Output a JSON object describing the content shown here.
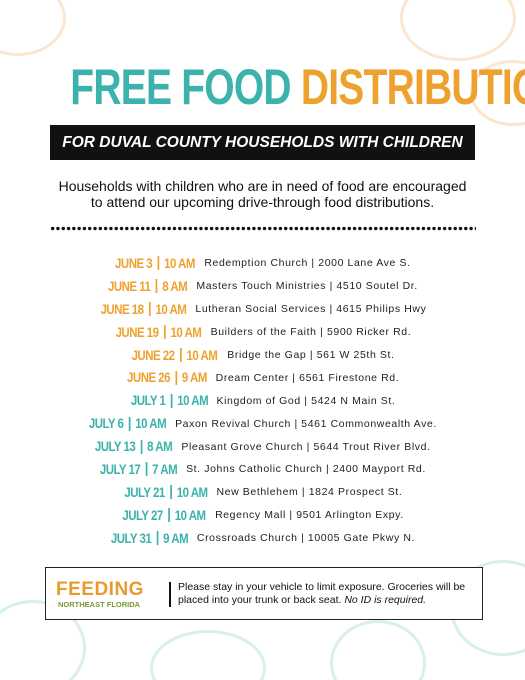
{
  "header": {
    "title_part1": "FREE FOOD",
    "title_part2": "DISTRIBUTION",
    "subtitle": "FOR DUVAL COUNTY HOUSEHOLDS WITH CHILDREN",
    "intro": [
      "Households with children who are in need of food are encouraged",
      "to attend our upcoming drive-through food distributions."
    ]
  },
  "events": [
    {
      "date": "JUNE 3",
      "time": "10 AM",
      "place": "Redemption Church | 2000 Lane Ave S."
    },
    {
      "date": "JUNE 11",
      "time": "8 AM",
      "place": "Masters Touch Ministries | 4510 Soutel Dr."
    },
    {
      "date": "JUNE 18",
      "time": "10 AM",
      "place": "Lutheran Social Services | 4615 Philips Hwy"
    },
    {
      "date": "JUNE 19",
      "time": "10 AM",
      "place": "Builders of the Faith | 5900 Ricker Rd."
    },
    {
      "date": "JUNE 22",
      "time": "10 AM",
      "place": "Bridge the Gap | 561 W 25th St."
    },
    {
      "date": "JUNE 26",
      "time": "9 AM",
      "place": "Dream Center | 6561 Firestone Rd."
    },
    {
      "date": "JULY 1",
      "time": "10 AM",
      "place": "Kingdom of God | 5424 N Main St."
    },
    {
      "date": "JULY 6",
      "time": "10 AM",
      "place": "Paxon Revival Church | 5461 Commonwealth Ave."
    },
    {
      "date": "JULY 13",
      "time": "8 AM",
      "place": "Pleasant Grove Church | 5644 Trout River Blvd."
    },
    {
      "date": "JULY 17",
      "time": "7 AM",
      "place": "St. Johns Catholic Church | 2400 Mayport Rd."
    },
    {
      "date": "JULY 21",
      "time": "10 AM",
      "place": "New Bethlehem | 1824 Prospect St."
    },
    {
      "date": "JULY 27",
      "time": "10 AM",
      "place": "Regency Mall | 9501 Arlington Expy."
    },
    {
      "date": "JULY 31",
      "time": "9 AM",
      "place": "Crossroads Church | 10005 Gate Pkwy N."
    }
  ],
  "footer": {
    "logo": "FEEDING",
    "logo_sub": "NORTHEAST FLORIDA",
    "note": "Please stay in your vehicle to limit exposure. Groceries will be placed into your trunk or back seat.",
    "note_emphasis": "No ID is required."
  }
}
